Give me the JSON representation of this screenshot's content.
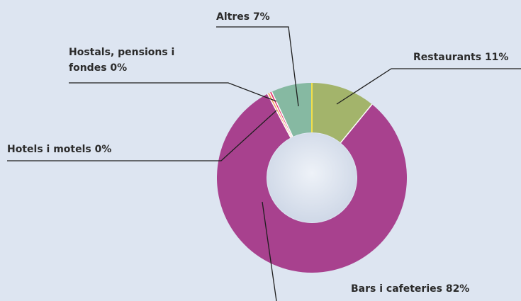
{
  "chart_data": {
    "type": "donut",
    "categories": [
      "Restaurants",
      "Bars i cafeteries",
      "Hotels i motels",
      "Hostals, pensions i fondes",
      "Altres"
    ],
    "values": [
      11,
      82,
      0.4,
      0.4,
      7
    ],
    "value_labels": [
      "11%",
      "82%",
      "0%",
      "0%",
      "7%"
    ],
    "colors": [
      "#a3b46b",
      "#a8418e",
      "#f3a35e",
      "#e3356f",
      "#86b9a2"
    ]
  }
}
